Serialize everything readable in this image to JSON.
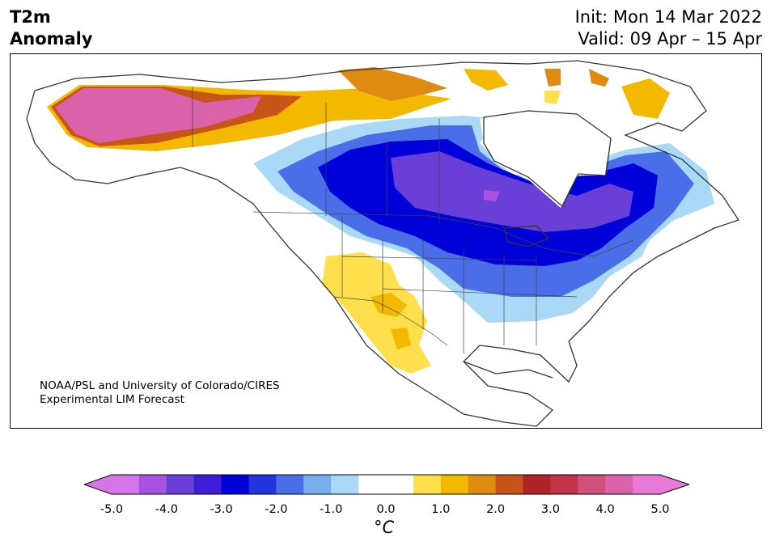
{
  "header": {
    "title_line1": "T2m",
    "title_line2": "Anomaly",
    "init_text": "Init: Mon 14 Mar 2022",
    "valid_text": "Valid: 09 Apr – 15 Apr"
  },
  "credit": {
    "line1": "NOAA/PSL and University of Colorado/CIRES",
    "line2": "Experimental LIM Forecast"
  },
  "colorbar": {
    "ticks": [
      "-5.0",
      "-4.0",
      "-3.0",
      "-2.0",
      "-1.0",
      "0.0",
      "1.0",
      "2.0",
      "3.0",
      "4.0",
      "5.0"
    ],
    "units": "°C",
    "colors": [
      "#d675e8",
      "#a853e0",
      "#6a3fd8",
      "#3d1dd6",
      "#0000d8",
      "#2234db",
      "#4a6ee8",
      "#77aef0",
      "#a9d9f7",
      "#ffffff",
      "#ffffff",
      "#ffe04c",
      "#f3b800",
      "#df8a10",
      "#c75418",
      "#b02326",
      "#c2344a",
      "#d0527a",
      "#da62aa",
      "#e879d8"
    ],
    "under_color": "#d675e8",
    "over_color": "#e879d8"
  }
}
